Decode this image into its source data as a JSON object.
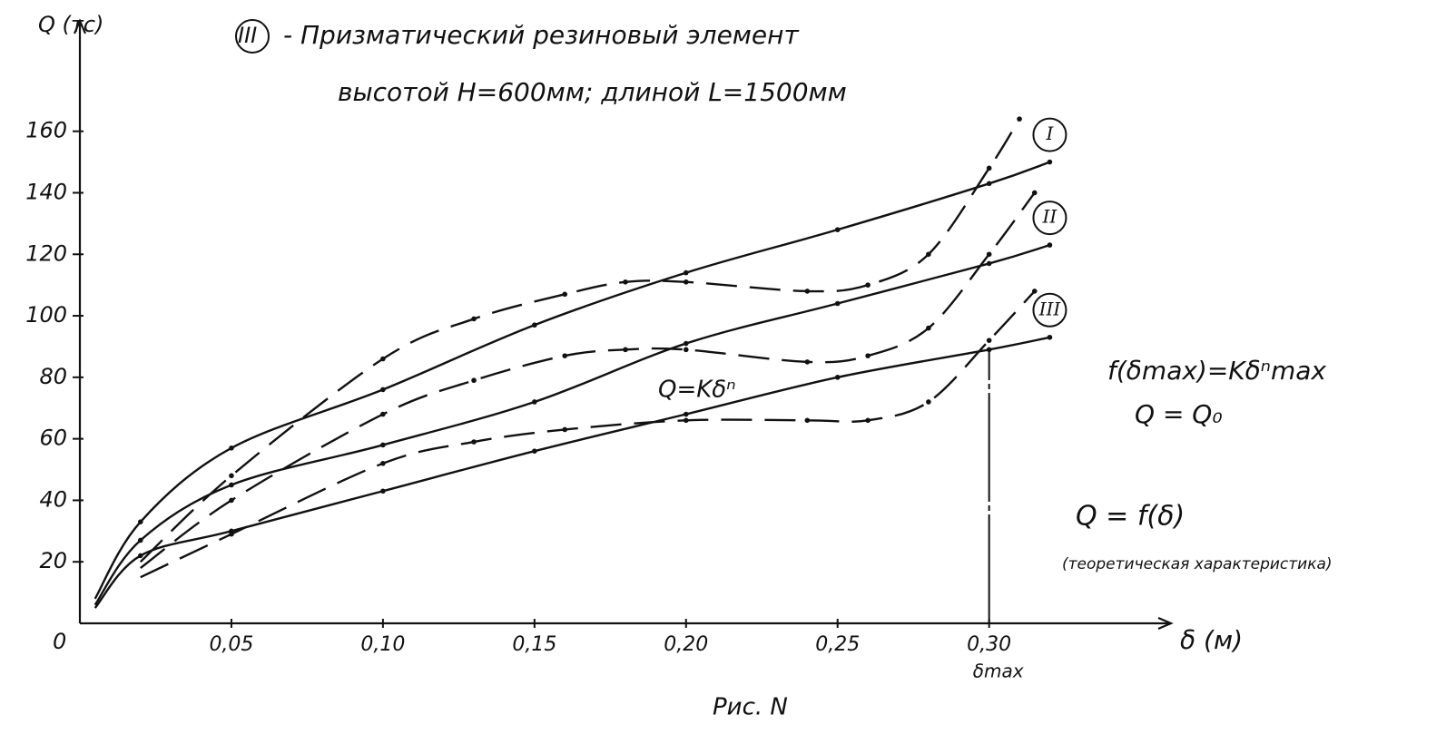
{
  "chart_data": {
    "type": "line",
    "title_mark": "III",
    "title": "- Призматический резиновый элемент",
    "subtitle": "высотой H=600мм; длиной L=1500мм",
    "y_label": "Q (тс)",
    "x_label": "δ (м)",
    "x_marker": "δmax",
    "x_marker_value": 0.3,
    "caption": "Рис. N",
    "annotations": [
      "Q=Kδⁿ",
      "f(δmax)=Kδⁿmax",
      "Q = Q₀",
      "Q = f(δ)",
      "(теоретическая характеристика)"
    ],
    "origin_label": "0",
    "xlim": [
      0,
      0.36
    ],
    "ylim": [
      0,
      190
    ],
    "xticks": [
      {
        "value": 0.05,
        "label": "0,05"
      },
      {
        "value": 0.1,
        "label": "0,10"
      },
      {
        "value": 0.15,
        "label": "0,15"
      },
      {
        "value": 0.2,
        "label": "0,20"
      },
      {
        "value": 0.25,
        "label": "0,25"
      },
      {
        "value": 0.3,
        "label": "0,30"
      }
    ],
    "yticks": [
      20,
      40,
      60,
      80,
      100,
      120,
      140,
      160
    ],
    "series": [
      {
        "name": "I",
        "color": "#111111",
        "dashed": false,
        "x": [
          0.005,
          0.02,
          0.05,
          0.1,
          0.15,
          0.2,
          0.25,
          0.3,
          0.32
        ],
        "values": [
          8,
          33,
          57,
          76,
          97,
          114,
          128,
          143,
          150
        ]
      },
      {
        "name": "II",
        "color": "#111111",
        "dashed": false,
        "x": [
          0.005,
          0.02,
          0.05,
          0.1,
          0.15,
          0.2,
          0.25,
          0.3,
          0.32
        ],
        "values": [
          6,
          27,
          45,
          58,
          72,
          91,
          104,
          117,
          123
        ]
      },
      {
        "name": "III",
        "color": "#111111",
        "dashed": false,
        "x": [
          0.005,
          0.02,
          0.05,
          0.1,
          0.15,
          0.2,
          0.25,
          0.3,
          0.32
        ],
        "values": [
          5,
          22,
          30,
          43,
          56,
          68,
          80,
          89,
          93
        ]
      },
      {
        "color": "#111111",
        "dashed": true,
        "x": [
          0.02,
          0.05,
          0.1,
          0.13,
          0.16,
          0.18,
          0.2,
          0.24,
          0.26,
          0.28,
          0.3,
          0.31
        ],
        "values": [
          20,
          48,
          86,
          99,
          107,
          111,
          111,
          108,
          110,
          120,
          148,
          164
        ]
      },
      {
        "color": "#111111",
        "dashed": true,
        "x": [
          0.02,
          0.05,
          0.1,
          0.13,
          0.16,
          0.18,
          0.2,
          0.24,
          0.26,
          0.28,
          0.3,
          0.315
        ],
        "values": [
          18,
          40,
          68,
          79,
          87,
          89,
          89,
          85,
          87,
          96,
          120,
          140
        ]
      },
      {
        "color": "#111111",
        "dashed": true,
        "x": [
          0.02,
          0.05,
          0.1,
          0.13,
          0.16,
          0.2,
          0.24,
          0.26,
          0.28,
          0.3,
          0.315
        ],
        "values": [
          15,
          29,
          52,
          59,
          63,
          66,
          66,
          66,
          72,
          92,
          108
        ]
      }
    ]
  }
}
